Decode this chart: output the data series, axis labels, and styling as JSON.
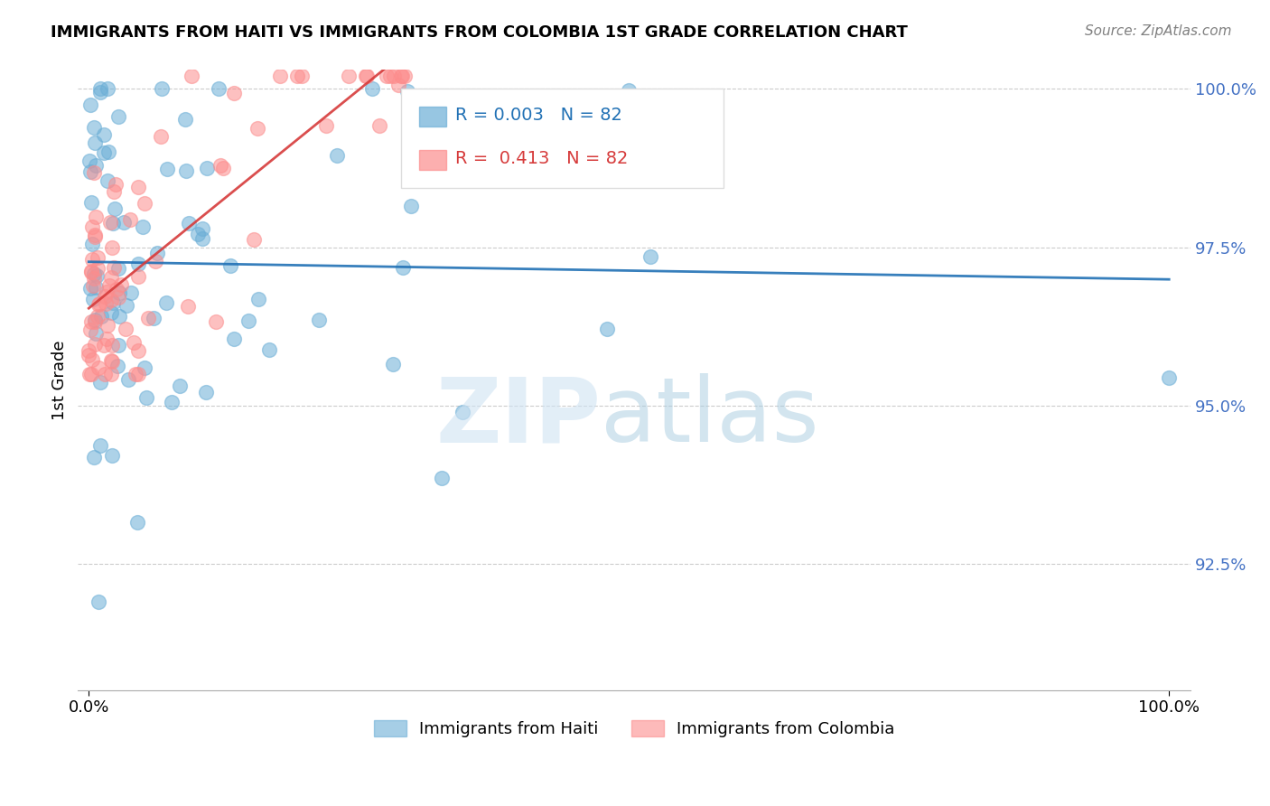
{
  "title": "IMMIGRANTS FROM HAITI VS IMMIGRANTS FROM COLOMBIA 1ST GRADE CORRELATION CHART",
  "source": "Source: ZipAtlas.com",
  "ylabel_label": "1st Grade",
  "legend_haiti": "Immigrants from Haiti",
  "legend_colombia": "Immigrants from Colombia",
  "R_haiti": "0.003",
  "N_haiti": "82",
  "R_colombia": "0.413",
  "N_colombia": "82",
  "haiti_color": "#6baed6",
  "colombia_color": "#fc8d8d",
  "trend_haiti_color": "#2171b5",
  "trend_colombia_color": "#d63b3b",
  "xlim": [
    0.0,
    1.0
  ],
  "ylim": [
    0.905,
    1.003
  ],
  "yticks": [
    0.925,
    0.95,
    0.975,
    1.0
  ],
  "ytick_labels": [
    "92.5%",
    "95.0%",
    "97.5%",
    "100.0%"
  ],
  "xtick_labels": [
    "0.0%",
    "100.0%"
  ]
}
